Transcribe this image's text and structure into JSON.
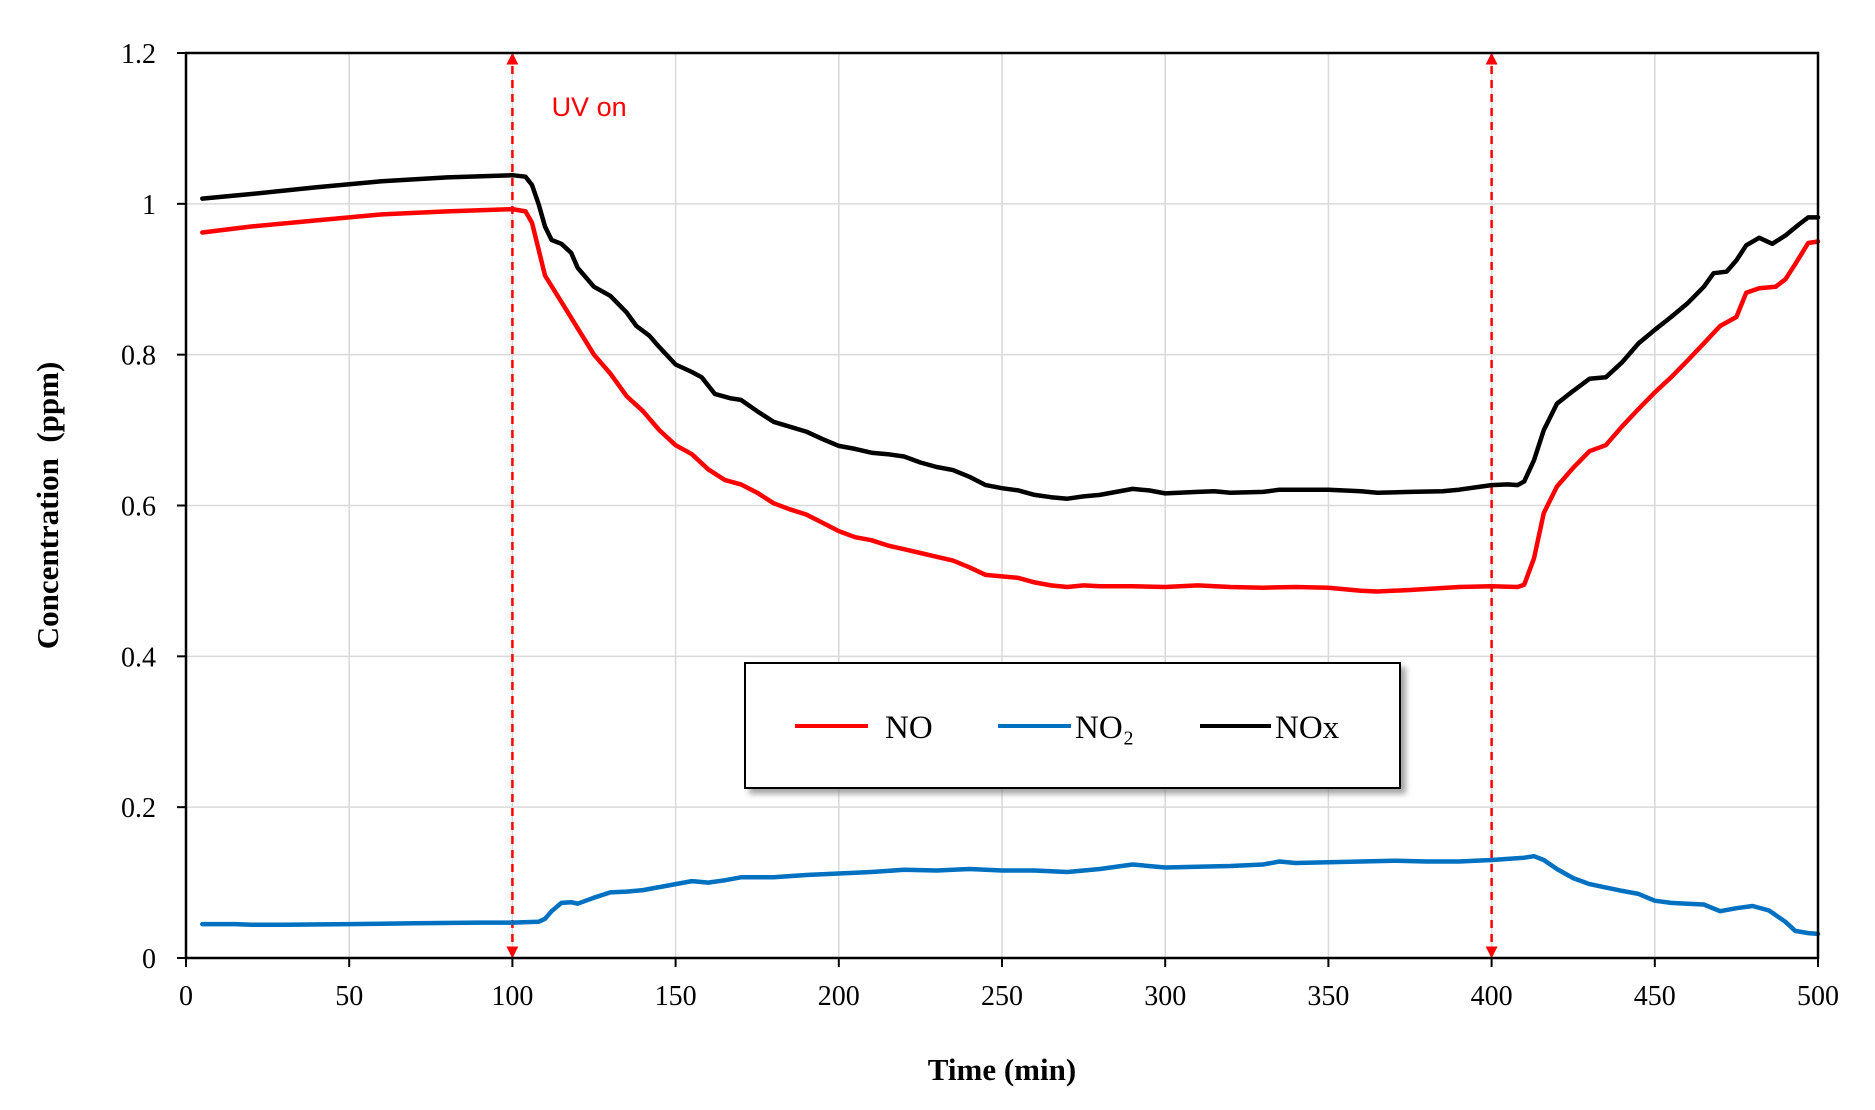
{
  "chart_data": {
    "type": "line",
    "title": "",
    "xlabel": "Time (min)",
    "ylabel": "Concentration  (ppm)",
    "xlim": [
      0,
      500
    ],
    "ylim": [
      0,
      1.2
    ],
    "x_ticks": [
      0,
      50,
      100,
      150,
      200,
      250,
      300,
      350,
      400,
      450,
      500
    ],
    "x_tick_labels": [
      "0",
      "50",
      "100",
      "150",
      "200",
      "250",
      "300",
      "350",
      "400",
      "450",
      "500"
    ],
    "y_ticks": [
      0,
      0.2,
      0.4,
      0.6,
      0.8,
      1.0,
      1.2
    ],
    "y_tick_labels": [
      "0",
      "0.2",
      "0.4",
      "0.6",
      "0.8",
      "1",
      "1.2"
    ],
    "grid": true,
    "legend": {
      "placement": "center-bottom",
      "entries": [
        "NO",
        "NO₂",
        "NOx"
      ]
    },
    "series": [
      {
        "name": "NO",
        "label": "NO",
        "color": "#ff0000",
        "points": [
          [
            5,
            0.962
          ],
          [
            20,
            0.97
          ],
          [
            40,
            0.978
          ],
          [
            60,
            0.986
          ],
          [
            80,
            0.99
          ],
          [
            100,
            0.993
          ],
          [
            104,
            0.99
          ],
          [
            106,
            0.975
          ],
          [
            108,
            0.94
          ],
          [
            110,
            0.905
          ],
          [
            115,
            0.87
          ],
          [
            120,
            0.835
          ],
          [
            125,
            0.8
          ],
          [
            130,
            0.775
          ],
          [
            135,
            0.745
          ],
          [
            140,
            0.725
          ],
          [
            145,
            0.7
          ],
          [
            150,
            0.68
          ],
          [
            155,
            0.668
          ],
          [
            160,
            0.648
          ],
          [
            165,
            0.634
          ],
          [
            170,
            0.628
          ],
          [
            175,
            0.617
          ],
          [
            180,
            0.603
          ],
          [
            185,
            0.595
          ],
          [
            190,
            0.588
          ],
          [
            195,
            0.577
          ],
          [
            200,
            0.566
          ],
          [
            205,
            0.558
          ],
          [
            210,
            0.554
          ],
          [
            215,
            0.547
          ],
          [
            220,
            0.542
          ],
          [
            225,
            0.537
          ],
          [
            230,
            0.532
          ],
          [
            235,
            0.527
          ],
          [
            240,
            0.518
          ],
          [
            245,
            0.508
          ],
          [
            250,
            0.506
          ],
          [
            255,
            0.504
          ],
          [
            260,
            0.498
          ],
          [
            265,
            0.494
          ],
          [
            270,
            0.492
          ],
          [
            275,
            0.494
          ],
          [
            280,
            0.493
          ],
          [
            290,
            0.493
          ],
          [
            300,
            0.492
          ],
          [
            310,
            0.494
          ],
          [
            320,
            0.492
          ],
          [
            330,
            0.491
          ],
          [
            340,
            0.492
          ],
          [
            350,
            0.491
          ],
          [
            360,
            0.487
          ],
          [
            365,
            0.486
          ],
          [
            375,
            0.488
          ],
          [
            390,
            0.492
          ],
          [
            400,
            0.493
          ],
          [
            408,
            0.492
          ],
          [
            410,
            0.495
          ],
          [
            413,
            0.53
          ],
          [
            416,
            0.59
          ],
          [
            420,
            0.625
          ],
          [
            425,
            0.65
          ],
          [
            430,
            0.672
          ],
          [
            435,
            0.68
          ],
          [
            440,
            0.705
          ],
          [
            445,
            0.728
          ],
          [
            450,
            0.75
          ],
          [
            455,
            0.77
          ],
          [
            460,
            0.792
          ],
          [
            465,
            0.815
          ],
          [
            470,
            0.838
          ],
          [
            475,
            0.85
          ],
          [
            478,
            0.882
          ],
          [
            482,
            0.888
          ],
          [
            487,
            0.89
          ],
          [
            490,
            0.9
          ],
          [
            493,
            0.92
          ],
          [
            497,
            0.948
          ],
          [
            500,
            0.95
          ]
        ]
      },
      {
        "name": "NO2",
        "label": "NO₂",
        "color": "#0070c0",
        "points": [
          [
            5,
            0.045
          ],
          [
            15,
            0.045
          ],
          [
            20,
            0.044
          ],
          [
            30,
            0.044
          ],
          [
            50,
            0.045
          ],
          [
            70,
            0.046
          ],
          [
            90,
            0.047
          ],
          [
            100,
            0.047
          ],
          [
            108,
            0.048
          ],
          [
            110,
            0.052
          ],
          [
            112,
            0.062
          ],
          [
            115,
            0.073
          ],
          [
            118,
            0.074
          ],
          [
            120,
            0.072
          ],
          [
            125,
            0.08
          ],
          [
            130,
            0.087
          ],
          [
            135,
            0.088
          ],
          [
            140,
            0.09
          ],
          [
            145,
            0.094
          ],
          [
            150,
            0.098
          ],
          [
            155,
            0.102
          ],
          [
            160,
            0.1
          ],
          [
            165,
            0.103
          ],
          [
            170,
            0.107
          ],
          [
            180,
            0.107
          ],
          [
            190,
            0.11
          ],
          [
            200,
            0.112
          ],
          [
            210,
            0.114
          ],
          [
            220,
            0.117
          ],
          [
            230,
            0.116
          ],
          [
            240,
            0.118
          ],
          [
            250,
            0.116
          ],
          [
            260,
            0.116
          ],
          [
            270,
            0.114
          ],
          [
            280,
            0.118
          ],
          [
            290,
            0.124
          ],
          [
            300,
            0.12
          ],
          [
            310,
            0.121
          ],
          [
            320,
            0.122
          ],
          [
            330,
            0.124
          ],
          [
            335,
            0.128
          ],
          [
            340,
            0.126
          ],
          [
            350,
            0.127
          ],
          [
            360,
            0.128
          ],
          [
            370,
            0.129
          ],
          [
            380,
            0.128
          ],
          [
            390,
            0.128
          ],
          [
            400,
            0.13
          ],
          [
            410,
            0.133
          ],
          [
            413,
            0.135
          ],
          [
            416,
            0.13
          ],
          [
            420,
            0.118
          ],
          [
            425,
            0.106
          ],
          [
            430,
            0.098
          ],
          [
            440,
            0.089
          ],
          [
            445,
            0.085
          ],
          [
            450,
            0.076
          ],
          [
            455,
            0.073
          ],
          [
            460,
            0.072
          ],
          [
            465,
            0.071
          ],
          [
            470,
            0.062
          ],
          [
            475,
            0.066
          ],
          [
            480,
            0.069
          ],
          [
            485,
            0.063
          ],
          [
            490,
            0.048
          ],
          [
            493,
            0.036
          ],
          [
            497,
            0.033
          ],
          [
            500,
            0.032
          ]
        ]
      },
      {
        "name": "NOx",
        "label": "NOx",
        "color": "#000000",
        "points": [
          [
            5,
            1.007
          ],
          [
            20,
            1.013
          ],
          [
            40,
            1.022
          ],
          [
            60,
            1.03
          ],
          [
            80,
            1.035
          ],
          [
            100,
            1.038
          ],
          [
            104,
            1.036
          ],
          [
            106,
            1.025
          ],
          [
            108,
            1.0
          ],
          [
            110,
            0.97
          ],
          [
            112,
            0.952
          ],
          [
            115,
            0.947
          ],
          [
            118,
            0.935
          ],
          [
            120,
            0.915
          ],
          [
            125,
            0.89
          ],
          [
            130,
            0.878
          ],
          [
            135,
            0.856
          ],
          [
            138,
            0.838
          ],
          [
            142,
            0.825
          ],
          [
            145,
            0.81
          ],
          [
            150,
            0.787
          ],
          [
            155,
            0.777
          ],
          [
            158,
            0.77
          ],
          [
            162,
            0.748
          ],
          [
            167,
            0.742
          ],
          [
            170,
            0.74
          ],
          [
            175,
            0.725
          ],
          [
            180,
            0.711
          ],
          [
            190,
            0.698
          ],
          [
            195,
            0.688
          ],
          [
            200,
            0.679
          ],
          [
            205,
            0.675
          ],
          [
            210,
            0.67
          ],
          [
            215,
            0.668
          ],
          [
            220,
            0.665
          ],
          [
            225,
            0.657
          ],
          [
            230,
            0.651
          ],
          [
            235,
            0.647
          ],
          [
            240,
            0.638
          ],
          [
            245,
            0.627
          ],
          [
            250,
            0.623
          ],
          [
            255,
            0.62
          ],
          [
            260,
            0.614
          ],
          [
            265,
            0.611
          ],
          [
            270,
            0.609
          ],
          [
            275,
            0.612
          ],
          [
            280,
            0.614
          ],
          [
            285,
            0.618
          ],
          [
            290,
            0.622
          ],
          [
            295,
            0.62
          ],
          [
            300,
            0.616
          ],
          [
            310,
            0.618
          ],
          [
            315,
            0.619
          ],
          [
            320,
            0.617
          ],
          [
            330,
            0.618
          ],
          [
            335,
            0.621
          ],
          [
            340,
            0.621
          ],
          [
            350,
            0.621
          ],
          [
            360,
            0.619
          ],
          [
            365,
            0.617
          ],
          [
            375,
            0.618
          ],
          [
            385,
            0.619
          ],
          [
            390,
            0.621
          ],
          [
            395,
            0.624
          ],
          [
            400,
            0.627
          ],
          [
            405,
            0.628
          ],
          [
            408,
            0.627
          ],
          [
            410,
            0.632
          ],
          [
            413,
            0.66
          ],
          [
            416,
            0.7
          ],
          [
            420,
            0.735
          ],
          [
            425,
            0.752
          ],
          [
            430,
            0.768
          ],
          [
            435,
            0.77
          ],
          [
            440,
            0.79
          ],
          [
            445,
            0.815
          ],
          [
            450,
            0.833
          ],
          [
            455,
            0.85
          ],
          [
            460,
            0.868
          ],
          [
            465,
            0.89
          ],
          [
            468,
            0.908
          ],
          [
            472,
            0.91
          ],
          [
            475,
            0.925
          ],
          [
            478,
            0.945
          ],
          [
            482,
            0.955
          ],
          [
            486,
            0.947
          ],
          [
            490,
            0.958
          ],
          [
            494,
            0.972
          ],
          [
            497,
            0.982
          ],
          [
            500,
            0.982
          ]
        ]
      }
    ],
    "annotations": [
      {
        "type": "vertical-double-arrow",
        "x": 100,
        "y_from": 0,
        "y_to": 1.2,
        "color": "#ff0000",
        "style": "dashed"
      },
      {
        "type": "vertical-double-arrow",
        "x": 400,
        "y_from": 0,
        "y_to": 1.2,
        "color": "#ff0000",
        "style": "dashed"
      },
      {
        "type": "text",
        "text": "UV on",
        "x": 112,
        "y": 1.13,
        "color": "#ff0000"
      }
    ]
  }
}
